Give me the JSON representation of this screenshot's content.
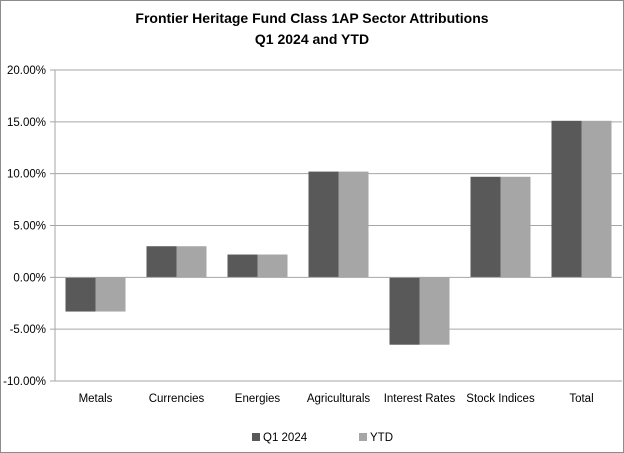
{
  "chart_data": {
    "type": "bar",
    "title": "Frontier Heritage Fund Class 1AP Sector Attributions",
    "subtitle": "Q1 2024 and YTD",
    "categories": [
      "Metals",
      "Currencies",
      "Energies",
      "Agriculturals",
      "Interest Rates",
      "Stock Indices",
      "Total"
    ],
    "series": [
      {
        "name": "Q1 2024",
        "color": "#595959",
        "values": [
          -3.3,
          3.0,
          2.2,
          10.2,
          -6.5,
          9.7,
          15.1
        ]
      },
      {
        "name": "YTD",
        "color": "#a6a6a6",
        "values": [
          -3.3,
          3.0,
          2.2,
          10.2,
          -6.5,
          9.7,
          15.1
        ]
      }
    ],
    "ylim": [
      -10,
      20
    ],
    "ytick_step": 5,
    "ytick_labels": [
      "-10.00%",
      "-5.00%",
      "0.00%",
      "5.00%",
      "10.00%",
      "15.00%",
      "20.00%"
    ],
    "grid": true,
    "legend_position": "bottom",
    "xlabel": "",
    "ylabel": ""
  }
}
